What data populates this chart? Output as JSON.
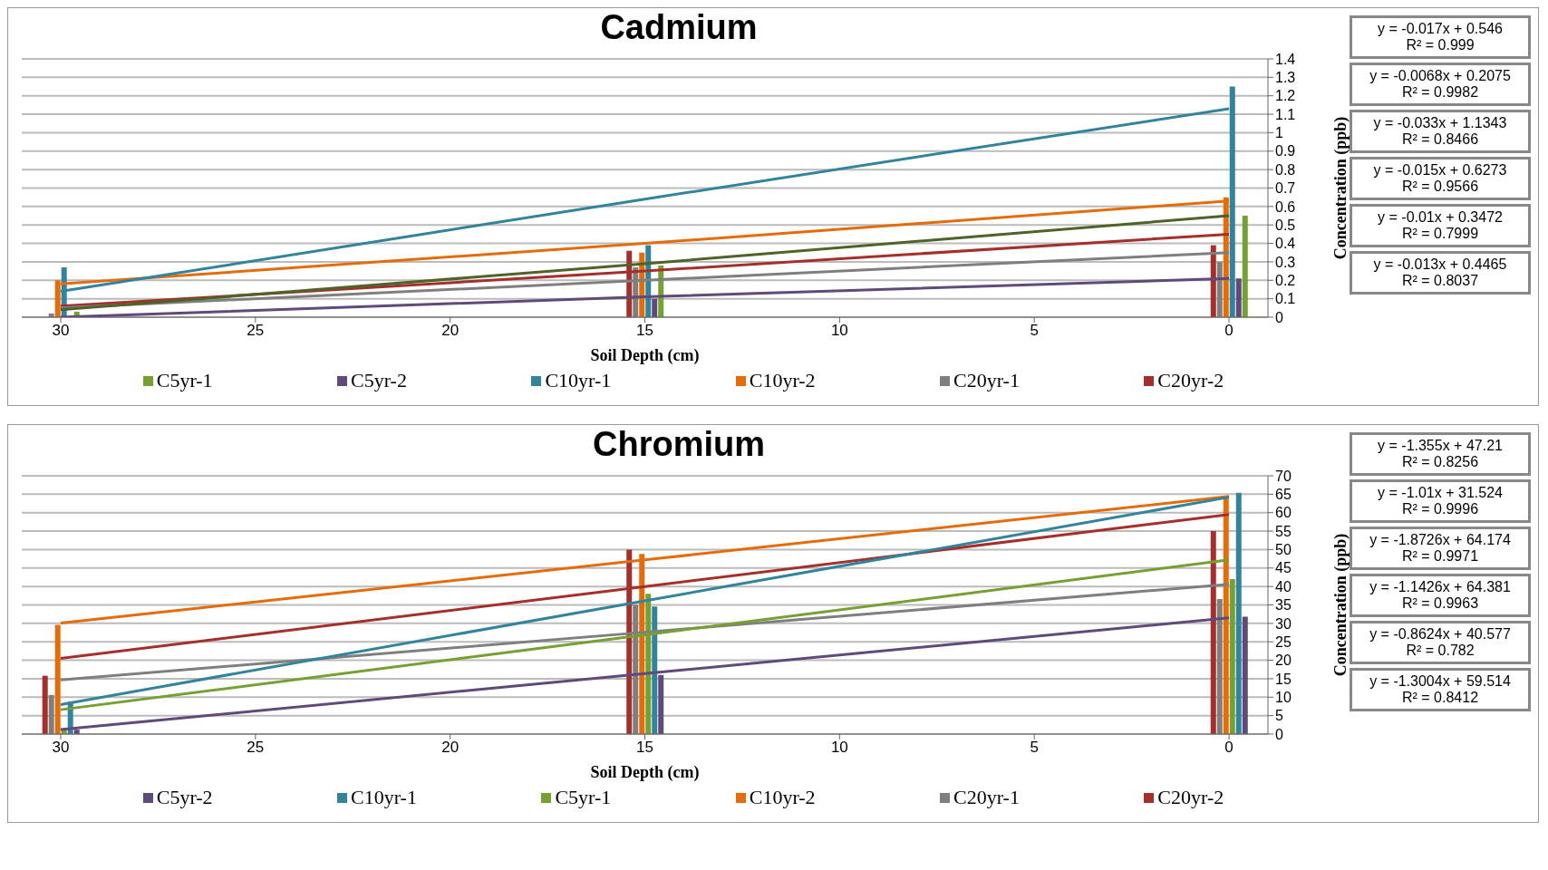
{
  "chart_data": [
    {
      "type": "bar",
      "title": "Cadmium",
      "xlabel": "Soil Depth (cm)",
      "ylabel": "Concentration (ppb)",
      "x": [
        30,
        15,
        0
      ],
      "xlim": [
        31,
        -1
      ],
      "xticks": [
        30,
        25,
        20,
        15,
        10,
        5,
        0
      ],
      "ylim": [
        0,
        1.4
      ],
      "yticks": [
        0,
        0.1,
        0.2,
        0.3,
        0.4,
        0.5,
        0.6,
        0.7,
        0.8,
        0.9,
        1,
        1.1,
        1.2,
        1.3,
        1.4
      ],
      "grid": "y",
      "legend": "bottom",
      "marker": "none",
      "series": [
        {
          "name": "C5yr-1",
          "color": "#77a033",
          "values": [
            0.03,
            0.28,
            0.55
          ]
        },
        {
          "name": "C5yr-2",
          "color": "#604a7b",
          "values": [
            null,
            0.1,
            0.21
          ]
        },
        {
          "name": "C10yr-1",
          "color": "#31849b",
          "values": [
            0.27,
            0.39,
            1.25
          ]
        },
        {
          "name": "C10yr-2",
          "color": "#e46c0a",
          "values": [
            0.2,
            0.35,
            0.65
          ]
        },
        {
          "name": "C20yr-1",
          "color": "#7f7f7f",
          "values": [
            0.02,
            0.27,
            0.3
          ]
        },
        {
          "name": "C20yr-2",
          "color": "#a5302b",
          "values": [
            null,
            0.36,
            0.39
          ]
        },
        {
          "type": "line",
          "color": "#4f6228",
          "values": [
            0.04,
            0.29,
            0.55
          ]
        },
        {
          "type": "line",
          "color": "#604a7b",
          "values": [
            0.0,
            0.11,
            0.21
          ]
        },
        {
          "type": "line",
          "color": "#31849b",
          "values": [
            0.14,
            0.64,
            1.13
          ]
        },
        {
          "type": "line",
          "color": "#e46c0a",
          "values": [
            0.18,
            0.4,
            0.63
          ]
        },
        {
          "type": "line",
          "color": "#7f7f7f",
          "values": [
            0.05,
            0.2,
            0.35
          ]
        },
        {
          "type": "line",
          "color": "#a5302b",
          "values": [
            0.06,
            0.25,
            0.45
          ]
        }
      ],
      "annotations": [
        "y = -0.017x + 0.546\nR² = 0.999",
        "y = -0.0068x + 0.2075\nR² = 0.9982",
        "y = -0.033x + 1.1343\nR² = 0.8466",
        "y = -0.015x + 0.6273\nR² = 0.9566",
        "y = -0.01x + 0.3472\nR² = 0.7999",
        "y = -0.013x + 0.4465\nR² = 0.8037"
      ]
    },
    {
      "type": "bar",
      "title": "Chromium",
      "xlabel": "Soil Depth (cm)",
      "ylabel": "Concentration (ppb)",
      "x": [
        30,
        15,
        0
      ],
      "xlim": [
        31,
        -1
      ],
      "xticks": [
        30,
        25,
        20,
        15,
        10,
        5,
        0
      ],
      "ylim": [
        0,
        70
      ],
      "yticks": [
        0,
        5,
        10,
        15,
        20,
        25,
        30,
        35,
        40,
        45,
        50,
        55,
        60,
        65,
        70
      ],
      "grid": "y",
      "legend": "bottom",
      "marker": "none",
      "series": [
        {
          "name": "C5yr-2",
          "color": "#604a7b",
          "values": [
            1.2,
            16,
            31.8
          ]
        },
        {
          "name": "C10yr-1",
          "color": "#31849b",
          "values": [
            8.8,
            34.6,
            65.4
          ]
        },
        {
          "name": "C5yr-1",
          "color": "#77a033",
          "values": [
            1,
            38,
            42
          ]
        },
        {
          "name": "C10yr-2",
          "color": "#e46c0a",
          "values": [
            29.6,
            48.8,
            64
          ]
        },
        {
          "name": "C20yr-1",
          "color": "#7f7f7f",
          "values": [
            10.6,
            35,
            36.6
          ]
        },
        {
          "name": "C20yr-2",
          "color": "#a5302b",
          "values": [
            15.8,
            50,
            55
          ]
        },
        {
          "type": "line",
          "color": "#604a7b",
          "values": [
            1.2,
            16.4,
            31.5
          ]
        },
        {
          "type": "line",
          "color": "#31849b",
          "values": [
            8,
            36.1,
            64.2
          ]
        },
        {
          "type": "line",
          "color": "#77a033",
          "values": [
            6.6,
            26.9,
            47.2
          ]
        },
        {
          "type": "line",
          "color": "#e46c0a",
          "values": [
            30.1,
            47.2,
            64.4
          ]
        },
        {
          "type": "line",
          "color": "#7f7f7f",
          "values": [
            14.7,
            27.6,
            40.6
          ]
        },
        {
          "type": "line",
          "color": "#a5302b",
          "values": [
            20.5,
            40,
            59.5
          ]
        }
      ],
      "annotations": [
        "y = -1.355x + 47.21\nR² = 0.8256",
        "y = -1.01x + 31.524\nR² = 0.9996",
        "y = -1.8726x + 64.174\nR² = 0.9971",
        "y = -1.1426x + 64.381\nR² = 0.9963",
        "y = -0.8624x + 40.577\nR² = 0.782",
        "y = -1.3004x + 59.514\nR² = 0.8412"
      ]
    }
  ]
}
